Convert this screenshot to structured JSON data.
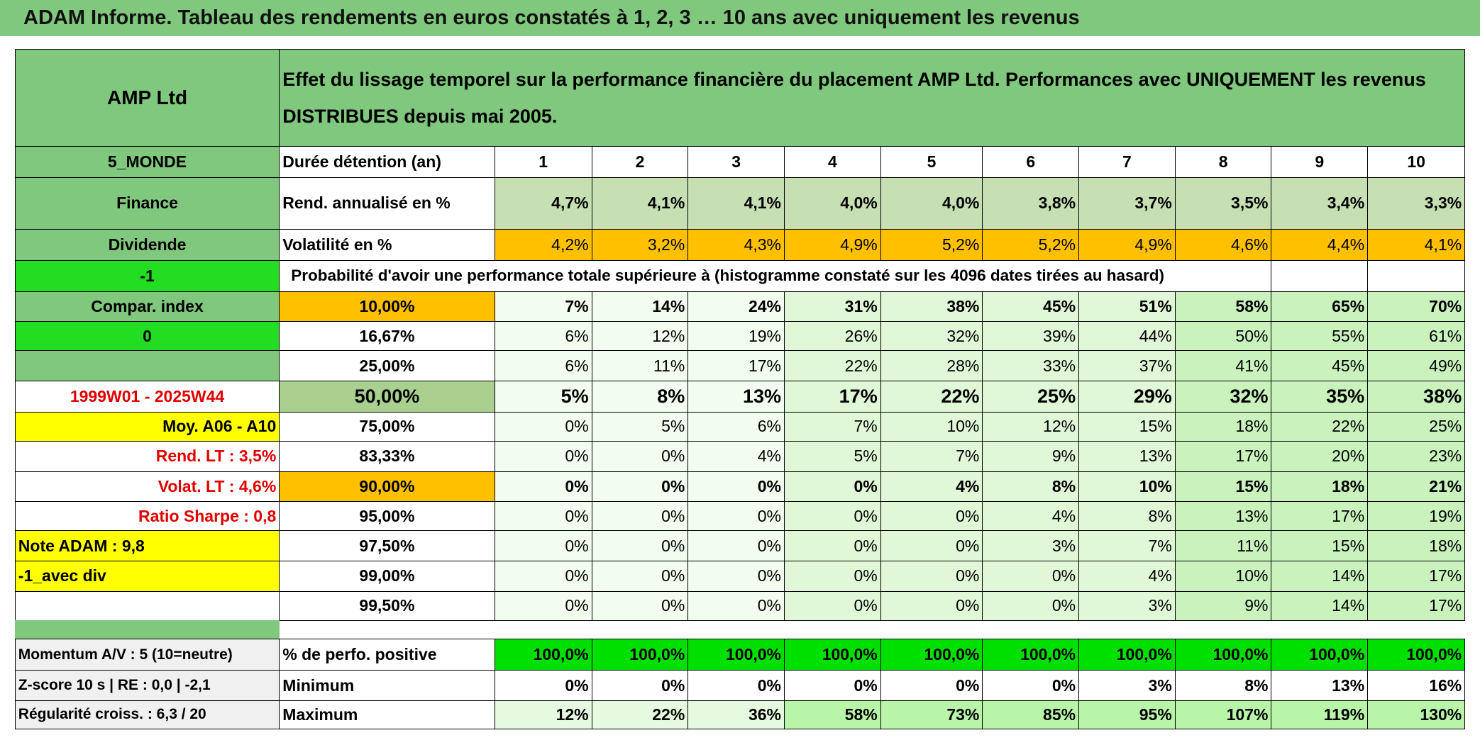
{
  "header": {
    "title": "ADAM Informe. Tableau des rendements en euros constatés à 1, 2, 3 … 10 ans avec uniquement les revenus"
  },
  "table": {
    "fund": "AMP Ltd",
    "description": "Effet du lissage temporel sur la performance financière du placement AMP Ltd. Performances avec UNIQUEMENT les revenus DISTRIBUES depuis mai 2005.",
    "rows": [
      {
        "label": "5_MONDE",
        "head": "Durée détention (an)",
        "cells": [
          1,
          2,
          3,
          4,
          5,
          6,
          7,
          8,
          9,
          10
        ]
      },
      {
        "label": "Finance",
        "head": "Rend. annualisé en %",
        "cells": [
          "4,7%",
          "4,1%",
          "4,1%",
          "4,0%",
          "4,0%",
          "3,8%",
          "3,7%",
          "3,5%",
          "3,4%",
          "3,3%"
        ]
      },
      {
        "label": "Dividende",
        "head": "Volatilité en %",
        "cells": [
          "4,2%",
          "3,2%",
          "4,3%",
          "4,9%",
          "5,2%",
          "5,2%",
          "4,9%",
          "4,6%",
          "4,4%",
          "4,1%"
        ]
      },
      {
        "label": "-1",
        "head": "Probabilité d'avoir une performance totale supérieure à (histogramme constaté sur les 4096 dates tirées au hasard)"
      },
      {
        "label": "Compar. index",
        "head": "10,00%",
        "cells": [
          "7%",
          "14%",
          "24%",
          "31%",
          "38%",
          "45%",
          "51%",
          "58%",
          "65%",
          "70%"
        ]
      },
      {
        "label": "0",
        "head": "16,67%",
        "cells": [
          "6%",
          "12%",
          "19%",
          "26%",
          "32%",
          "39%",
          "44%",
          "50%",
          "55%",
          "61%"
        ]
      },
      {
        "label": null,
        "head": "25,00%",
        "cells": [
          "6%",
          "11%",
          "17%",
          "22%",
          "28%",
          "33%",
          "37%",
          "41%",
          "45%",
          "49%"
        ]
      },
      {
        "label": "1999W01 - 2025W44",
        "head": "50,00%",
        "cells": [
          "5%",
          "8%",
          "13%",
          "17%",
          "22%",
          "25%",
          "29%",
          "32%",
          "35%",
          "38%"
        ]
      },
      {
        "label": "Moy. A06 - A10",
        "head": "75,00%",
        "cells": [
          "0%",
          "5%",
          "6%",
          "7%",
          "10%",
          "12%",
          "15%",
          "18%",
          "22%",
          "25%"
        ]
      },
      {
        "label": "Rend. LT :   3,5%",
        "head": "83,33%",
        "cells": [
          "0%",
          "0%",
          "4%",
          "5%",
          "7%",
          "9%",
          "13%",
          "17%",
          "20%",
          "23%"
        ]
      },
      {
        "label": "Volat. LT :   4,6%",
        "head": "90,00%",
        "cells": [
          "0%",
          "0%",
          "0%",
          "0%",
          "4%",
          "8%",
          "10%",
          "15%",
          "18%",
          "21%"
        ]
      },
      {
        "label": "Ratio Sharpe :   0,8",
        "head": "95,00%",
        "cells": [
          "0%",
          "0%",
          "0%",
          "0%",
          "0%",
          "4%",
          "8%",
          "13%",
          "17%",
          "19%"
        ]
      },
      {
        "label": "Note ADAM : 9,8",
        "head": "97,50%",
        "cells": [
          "0%",
          "0%",
          "0%",
          "0%",
          "0%",
          "3%",
          "7%",
          "11%",
          "15%",
          "18%"
        ]
      },
      {
        "label": "-1_avec div",
        "head": "99,00%",
        "cells": [
          "0%",
          "0%",
          "0%",
          "0%",
          "0%",
          "0%",
          "4%",
          "10%",
          "14%",
          "17%"
        ]
      },
      {
        "label": null,
        "head": "99,50%",
        "cells": [
          "0%",
          "0%",
          "0%",
          "0%",
          "0%",
          "0%",
          "3%",
          "9%",
          "14%",
          "17%"
        ]
      },
      {
        "label": null,
        "head": null
      },
      {
        "label": "Momentum A/V : 5 (10=neutre)",
        "head": "% de perfo. positive",
        "cells": [
          "100,0%",
          "100,0%",
          "100,0%",
          "100,0%",
          "100,0%",
          "100,0%",
          "100,0%",
          "100,0%",
          "100,0%",
          "100,0%"
        ]
      },
      {
        "label": "Z-score 10 s | RE : 0,0 | -2,1",
        "head": "Minimum",
        "cells": [
          "0%",
          "0%",
          "0%",
          "0%",
          "0%",
          "0%",
          "3%",
          "8%",
          "13%",
          "16%"
        ]
      },
      {
        "label": "Régularité croiss. : 6,3 / 20",
        "head": "Maximum",
        "cells": [
          "12%",
          "22%",
          "36%",
          "58%",
          "73%",
          "85%",
          "95%",
          "107%",
          "119%",
          "130%"
        ]
      }
    ]
  }
}
